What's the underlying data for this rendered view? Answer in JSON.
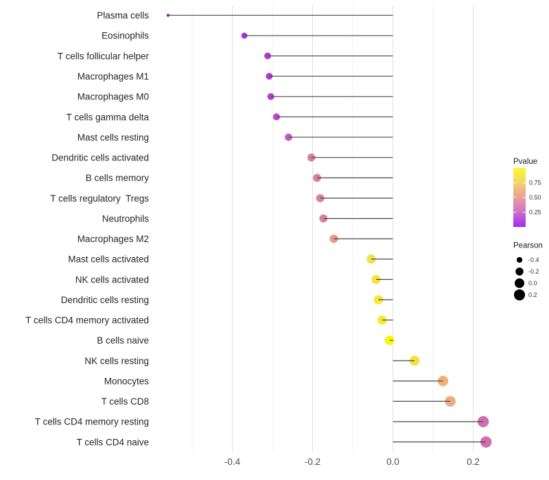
{
  "figure": {
    "background": "#FFFFFF"
  },
  "chart_data": {
    "type": "lollipop",
    "orientation": "horizontal",
    "title": "",
    "xlabel": "",
    "ylabel": "",
    "x_axis": {
      "tick_labels": [
        "-0.4",
        "-0.2",
        "0.0",
        "0.2"
      ],
      "tick_values": [
        -0.4,
        -0.2,
        0.0,
        0.2
      ],
      "minor_tick_values": [
        -0.5,
        -0.3,
        -0.1,
        0.1
      ],
      "range": [
        -0.598,
        0.272
      ]
    },
    "baseline_x": 0,
    "stem_color": "#444444",
    "grid": {
      "major_color": "#E2E2E2",
      "minor_color": "#F0F0F0"
    },
    "text_color": "#262626",
    "axis_text_color": "#4D4D4D",
    "points": [
      {
        "label": "Plasma cells",
        "pearson": -0.56,
        "pvalue_est": 0.01,
        "color": "#7B24C8"
      },
      {
        "label": "Eosinophils",
        "pearson": -0.37,
        "pvalue_est": 0.1,
        "color": "#A838DA"
      },
      {
        "label": "T cells follicular helper",
        "pearson": -0.312,
        "pvalue_est": 0.14,
        "color": "#AF3BD4"
      },
      {
        "label": "Macrophages M1",
        "pearson": -0.308,
        "pvalue_est": 0.14,
        "color": "#B13DD3"
      },
      {
        "label": "Macrophages M0",
        "pearson": -0.304,
        "pvalue_est": 0.15,
        "color": "#B23FD1"
      },
      {
        "label": "T cells gamma delta",
        "pearson": -0.29,
        "pvalue_est": 0.18,
        "color": "#BB49CA"
      },
      {
        "label": "Mast cells resting",
        "pearson": -0.26,
        "pvalue_est": 0.22,
        "color": "#C95BC0"
      },
      {
        "label": "Dendritic cells activated",
        "pearson": -0.203,
        "pvalue_est": 0.38,
        "color": "#D67C9F"
      },
      {
        "label": "B cells memory",
        "pearson": -0.189,
        "pvalue_est": 0.4,
        "color": "#D8809E"
      },
      {
        "label": "T cells regulatory  Tregs",
        "pearson": -0.181,
        "pvalue_est": 0.41,
        "color": "#D8829D"
      },
      {
        "label": "Neutrophils",
        "pearson": -0.173,
        "pvalue_est": 0.42,
        "color": "#D9859B"
      },
      {
        "label": "Macrophages M2",
        "pearson": -0.147,
        "pvalue_est": 0.52,
        "color": "#E89B80"
      },
      {
        "label": "Mast cells activated",
        "pearson": -0.054,
        "pvalue_est": 0.8,
        "color": "#F3E14B"
      },
      {
        "label": "NK cells activated",
        "pearson": -0.042,
        "pvalue_est": 0.83,
        "color": "#F5E63F"
      },
      {
        "label": "Dendritic cells resting",
        "pearson": -0.036,
        "pvalue_est": 0.84,
        "color": "#F6E83B"
      },
      {
        "label": "T cells CD4 memory activated",
        "pearson": -0.027,
        "pvalue_est": 0.86,
        "color": "#F7EB32"
      },
      {
        "label": "B cells naive",
        "pearson": -0.008,
        "pvalue_est": 0.93,
        "color": "#FAF70E"
      },
      {
        "label": "NK cells resting",
        "pearson": 0.054,
        "pvalue_est": 0.79,
        "color": "#F4E046"
      },
      {
        "label": "Monocytes",
        "pearson": 0.125,
        "pvalue_est": 0.57,
        "color": "#EFB277"
      },
      {
        "label": "T cells CD8",
        "pearson": 0.143,
        "pvalue_est": 0.53,
        "color": "#ECAB83"
      },
      {
        "label": "T cells CD4 memory resting",
        "pearson": 0.225,
        "pvalue_est": 0.33,
        "color": "#D06FB0"
      },
      {
        "label": "T cells CD4 naive",
        "pearson": 0.232,
        "pvalue_est": 0.33,
        "color": "#D06FB2"
      }
    ],
    "legends": {
      "pvalue": {
        "title": "Pvalue",
        "tick_labels": [
          "0.75",
          "0.50",
          "0.25"
        ],
        "tick_values": [
          0.75,
          0.5,
          0.25
        ],
        "range": [
          0,
          1
        ],
        "gradient_stops": [
          {
            "offset": 0.0,
            "color": "#FDF62B"
          },
          {
            "offset": 0.2,
            "color": "#F7DC63"
          },
          {
            "offset": 0.4,
            "color": "#EEB388"
          },
          {
            "offset": 0.55,
            "color": "#E596A4"
          },
          {
            "offset": 0.7,
            "color": "#D47BC0"
          },
          {
            "offset": 0.85,
            "color": "#BC52DC"
          },
          {
            "offset": 1.0,
            "color": "#A32EF0"
          }
        ]
      },
      "pearson": {
        "title": "Pearson",
        "dot_color": "#000000",
        "entries": [
          {
            "label": "-0.4",
            "value": -0.4
          },
          {
            "label": "-0.2",
            "value": -0.2
          },
          {
            "label": "0.0",
            "value": 0.0
          },
          {
            "label": "0.2",
            "value": 0.2
          }
        ]
      }
    }
  }
}
